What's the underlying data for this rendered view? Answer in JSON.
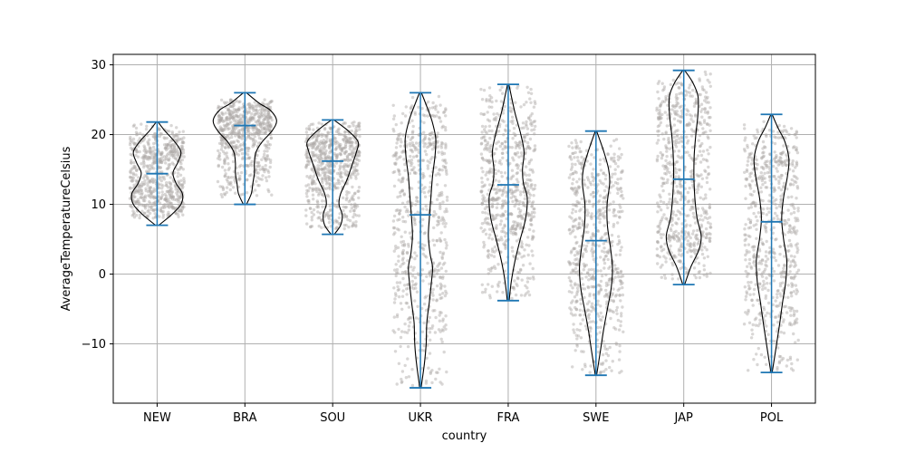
{
  "chart_data": {
    "type": "violin",
    "xlabel": "country",
    "ylabel": "AverageTemperatureCelsius",
    "ylim": [
      -18.5,
      31.5
    ],
    "yticks": [
      -10,
      0,
      10,
      20,
      30
    ],
    "ytick_labels": [
      "−10",
      "0",
      "10",
      "20",
      "30"
    ],
    "grid": true,
    "categories": [
      "NEW",
      "BRA",
      "SOU",
      "UKR",
      "FRA",
      "SWE",
      "JAP",
      "POL"
    ],
    "series": [
      {
        "category": "NEW",
        "min": 7.0,
        "mean": 14.4,
        "max": 21.8,
        "jitter_low": 8.0,
        "jitter_high": 21.5,
        "density": [
          [
            7.0,
            0.05
          ],
          [
            8.5,
            0.45
          ],
          [
            10.0,
            0.75
          ],
          [
            11.5,
            0.8
          ],
          [
            13.0,
            0.6
          ],
          [
            14.5,
            0.5
          ],
          [
            16.0,
            0.65
          ],
          [
            17.5,
            0.75
          ],
          [
            19.0,
            0.55
          ],
          [
            20.5,
            0.25
          ],
          [
            21.8,
            0.03
          ]
        ]
      },
      {
        "category": "BRA",
        "min": 10.0,
        "mean": 21.3,
        "max": 26.0,
        "jitter_low": 11.0,
        "jitter_high": 25.0,
        "density": [
          [
            10.0,
            0.05
          ],
          [
            11.5,
            0.2
          ],
          [
            13.0,
            0.25
          ],
          [
            14.5,
            0.3
          ],
          [
            16.0,
            0.3
          ],
          [
            17.5,
            0.35
          ],
          [
            19.0,
            0.55
          ],
          [
            20.5,
            0.85
          ],
          [
            22.0,
            1.0
          ],
          [
            23.5,
            0.8
          ],
          [
            24.5,
            0.45
          ],
          [
            26.0,
            0.05
          ]
        ]
      },
      {
        "category": "SOU",
        "min": 5.7,
        "mean": 16.2,
        "max": 22.1,
        "jitter_low": 6.5,
        "jitter_high": 21.8,
        "density": [
          [
            5.7,
            0.05
          ],
          [
            7.0,
            0.25
          ],
          [
            8.5,
            0.3
          ],
          [
            10.0,
            0.2
          ],
          [
            11.5,
            0.25
          ],
          [
            13.5,
            0.45
          ],
          [
            15.5,
            0.6
          ],
          [
            17.5,
            0.75
          ],
          [
            19.0,
            0.8
          ],
          [
            20.5,
            0.5
          ],
          [
            22.1,
            0.04
          ]
        ]
      },
      {
        "category": "UKR",
        "min": -16.3,
        "mean": 8.5,
        "max": 26.0,
        "jitter_low": -16.0,
        "jitter_high": 25.5,
        "density": [
          [
            -16.3,
            0.02
          ],
          [
            -13.0,
            0.12
          ],
          [
            -10.0,
            0.18
          ],
          [
            -7.0,
            0.2
          ],
          [
            -4.0,
            0.28
          ],
          [
            -1.0,
            0.35
          ],
          [
            1.0,
            0.38
          ],
          [
            3.0,
            0.3
          ],
          [
            5.5,
            0.25
          ],
          [
            8.0,
            0.28
          ],
          [
            11.0,
            0.33
          ],
          [
            14.0,
            0.38
          ],
          [
            17.0,
            0.46
          ],
          [
            19.5,
            0.48
          ],
          [
            22.0,
            0.36
          ],
          [
            24.5,
            0.16
          ],
          [
            26.0,
            0.03
          ]
        ]
      },
      {
        "category": "FRA",
        "min": -3.8,
        "mean": 12.8,
        "max": 27.2,
        "jitter_low": -3.5,
        "jitter_high": 27.0,
        "density": [
          [
            -3.8,
            0.03
          ],
          [
            -1.0,
            0.1
          ],
          [
            2.0,
            0.22
          ],
          [
            5.0,
            0.38
          ],
          [
            8.0,
            0.55
          ],
          [
            11.0,
            0.6
          ],
          [
            13.0,
            0.48
          ],
          [
            15.0,
            0.45
          ],
          [
            17.5,
            0.5
          ],
          [
            20.0,
            0.4
          ],
          [
            23.0,
            0.22
          ],
          [
            25.5,
            0.1
          ],
          [
            27.2,
            0.02
          ]
        ]
      },
      {
        "category": "SWE",
        "min": -14.5,
        "mean": 4.8,
        "max": 20.5,
        "jitter_low": -14.5,
        "jitter_high": 19.5,
        "density": [
          [
            -14.5,
            0.02
          ],
          [
            -11.0,
            0.14
          ],
          [
            -8.0,
            0.24
          ],
          [
            -5.0,
            0.36
          ],
          [
            -2.0,
            0.48
          ],
          [
            1.0,
            0.52
          ],
          [
            4.0,
            0.45
          ],
          [
            7.0,
            0.36
          ],
          [
            10.0,
            0.35
          ],
          [
            13.0,
            0.43
          ],
          [
            15.0,
            0.4
          ],
          [
            17.5,
            0.25
          ],
          [
            20.5,
            0.02
          ]
        ]
      },
      {
        "category": "JAP",
        "min": -1.5,
        "mean": 13.6,
        "max": 29.2,
        "jitter_low": -1.0,
        "jitter_high": 29.0,
        "density": [
          [
            -1.5,
            0.03
          ],
          [
            1.0,
            0.22
          ],
          [
            3.5,
            0.48
          ],
          [
            5.5,
            0.55
          ],
          [
            8.0,
            0.42
          ],
          [
            11.0,
            0.35
          ],
          [
            14.0,
            0.32
          ],
          [
            17.0,
            0.33
          ],
          [
            20.0,
            0.38
          ],
          [
            23.0,
            0.45
          ],
          [
            25.5,
            0.45
          ],
          [
            27.5,
            0.28
          ],
          [
            29.2,
            0.03
          ]
        ]
      },
      {
        "category": "POL",
        "min": -14.1,
        "mean": 7.5,
        "max": 22.9,
        "jitter_low": -14.0,
        "jitter_high": 22.0,
        "density": [
          [
            -14.1,
            0.02
          ],
          [
            -10.0,
            0.16
          ],
          [
            -7.0,
            0.26
          ],
          [
            -4.0,
            0.35
          ],
          [
            -1.0,
            0.45
          ],
          [
            2.0,
            0.48
          ],
          [
            5.0,
            0.38
          ],
          [
            8.0,
            0.32
          ],
          [
            11.0,
            0.38
          ],
          [
            14.0,
            0.5
          ],
          [
            16.5,
            0.55
          ],
          [
            19.0,
            0.42
          ],
          [
            21.0,
            0.2
          ],
          [
            22.9,
            0.02
          ]
        ]
      }
    ],
    "colors": {
      "violin_edge": "#000000",
      "stat_lines": "#1f77b4",
      "jitter_points": "#aba7a3",
      "grid": "#b0b0b0"
    }
  }
}
